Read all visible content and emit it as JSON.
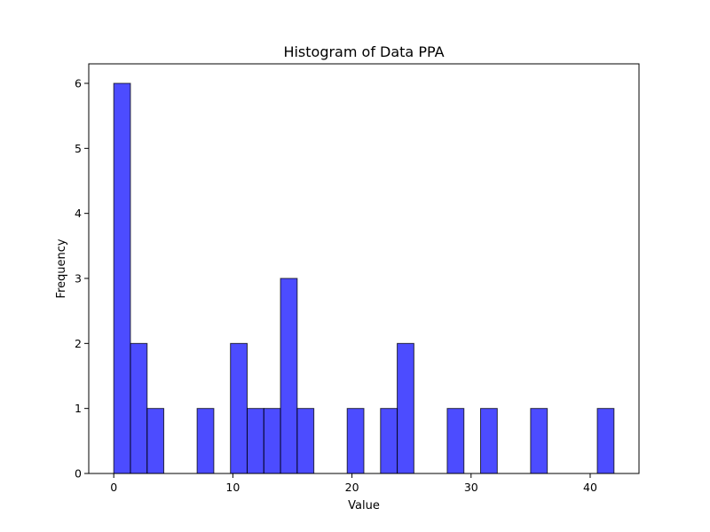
{
  "chart_data": {
    "type": "bar",
    "title": "Histogram of Data PPA",
    "xlabel": "Value",
    "ylabel": "Frequency",
    "xlim": [
      -2.1,
      44.1
    ],
    "ylim": [
      0,
      6.3
    ],
    "xticks": [
      0,
      10,
      20,
      30,
      40
    ],
    "yticks": [
      0,
      1,
      2,
      3,
      4,
      5,
      6
    ],
    "bin_start": 0,
    "bin_width": 1.4,
    "counts": [
      6,
      2,
      1,
      0,
      0,
      1,
      0,
      2,
      1,
      1,
      3,
      1,
      0,
      0,
      1,
      0,
      1,
      2,
      0,
      0,
      1,
      0,
      1,
      0,
      0,
      1,
      0,
      0,
      0,
      1
    ],
    "bar_color": "#0000ff",
    "bar_alpha": 0.7,
    "edge_color": "#000000",
    "grid": false
  }
}
